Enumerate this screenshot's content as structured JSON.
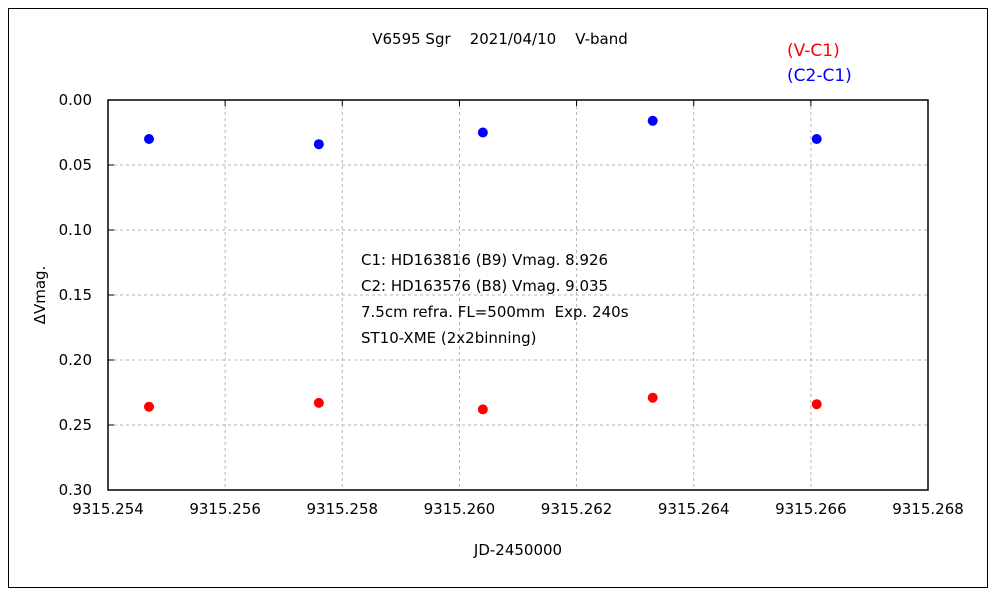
{
  "chart_data": {
    "type": "scatter",
    "title": "V6595 Sgr    2021/04/10    V-band",
    "xlabel": "JD-2450000",
    "ylabel": "ΔVmag.",
    "xlim": [
      9315.254,
      9315.268
    ],
    "ylim": [
      0.0,
      0.3
    ],
    "y_reversed": true,
    "x_ticks": [
      "9315.254",
      "9315.256",
      "9315.258",
      "9315.260",
      "9315.262",
      "9315.264",
      "9315.266",
      "9315.268"
    ],
    "x_tick_values": [
      9315.254,
      9315.256,
      9315.258,
      9315.26,
      9315.262,
      9315.264,
      9315.266,
      9315.268
    ],
    "y_ticks": [
      "0.00",
      "0.05",
      "0.10",
      "0.15",
      "0.20",
      "0.25",
      "0.30"
    ],
    "y_tick_values": [
      0.0,
      0.05,
      0.1,
      0.15,
      0.2,
      0.25,
      0.3
    ],
    "grid": true,
    "legend_position": "top-right",
    "series": [
      {
        "name": "(V-C1)",
        "color": "#ff0000",
        "x": [
          9315.2547,
          9315.2576,
          9315.2604,
          9315.2633,
          9315.2661
        ],
        "y": [
          0.236,
          0.233,
          0.238,
          0.229,
          0.234
        ]
      },
      {
        "name": "(C2-C1)",
        "color": "#0000ff",
        "x": [
          9315.2547,
          9315.2576,
          9315.2604,
          9315.2633,
          9315.2661
        ],
        "y": [
          0.03,
          0.034,
          0.025,
          0.016,
          0.03
        ]
      }
    ],
    "annotations": [
      "C1: HD163816 (B9) Vmag. 8.926",
      "C2: HD163576 (B8) Vmag. 9.035",
      "7.5cm refra. FL=500mm  Exp. 240s",
      "ST10-XME (2x2binning)"
    ]
  }
}
